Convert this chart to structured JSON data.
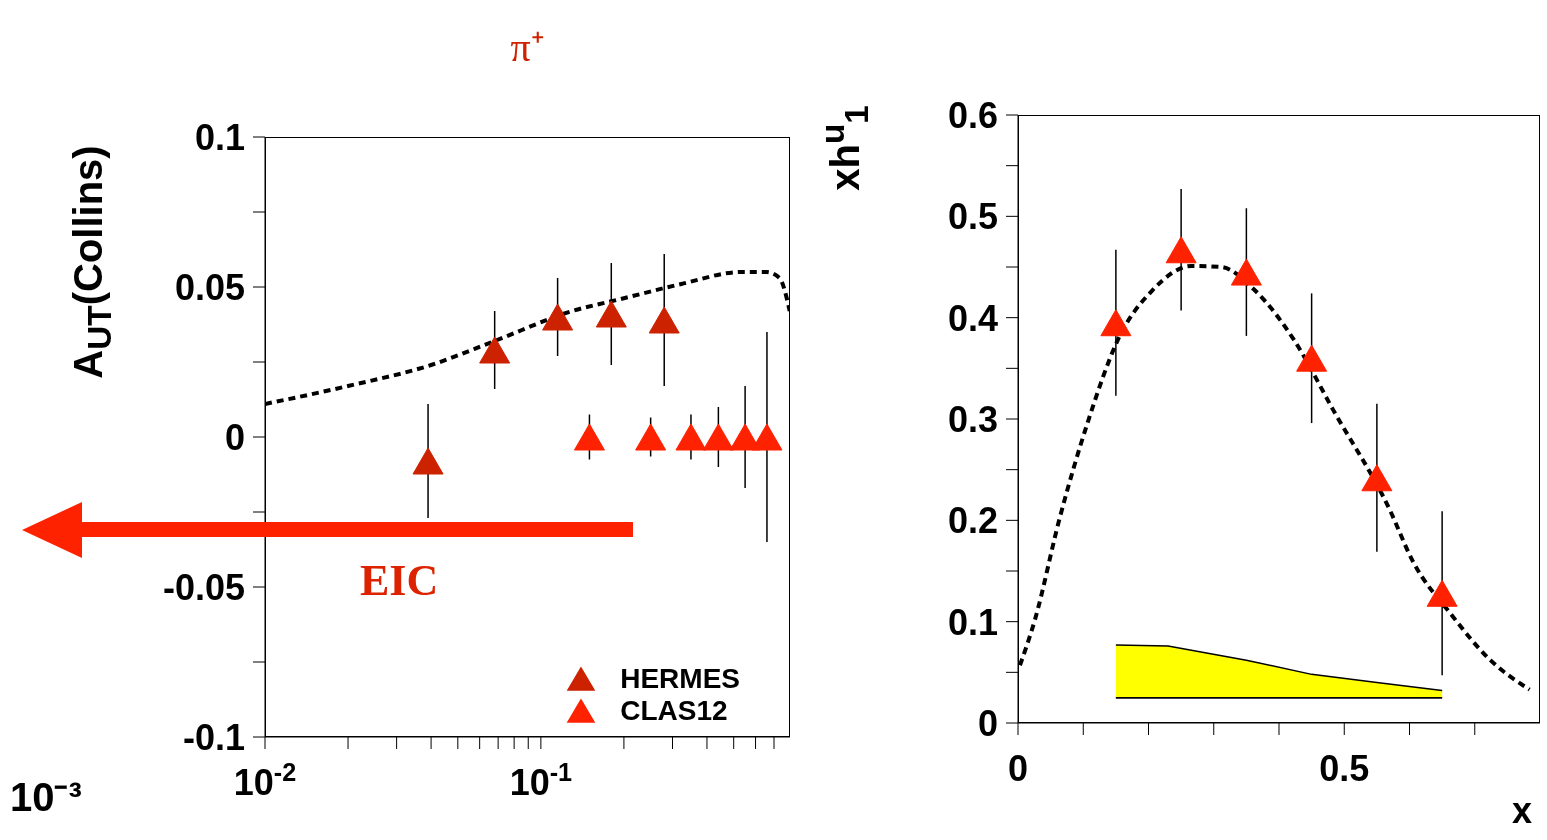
{
  "chart_data": [
    {
      "type": "line",
      "title": "π⁺",
      "ylabel": "A$_{UT}$(Collins)",
      "log": "x",
      "xlim": [
        0.01,
        0.8
      ],
      "xticks": [
        {
          "value": 0.01,
          "label": "10$^{-2}$"
        },
        {
          "value": 0.02,
          "label": null
        },
        {
          "value": 0.03,
          "label": null
        },
        {
          "value": 0.04,
          "label": null
        },
        {
          "value": 0.05,
          "label": null
        },
        {
          "value": 0.06,
          "label": null
        },
        {
          "value": 0.07,
          "label": null
        },
        {
          "value": 0.08,
          "label": null
        },
        {
          "value": 0.09,
          "label": null
        },
        {
          "value": 0.1,
          "label": "10$^{-1}$"
        },
        {
          "value": 0.2,
          "label": null
        },
        {
          "value": 0.3,
          "label": null
        },
        {
          "value": 0.4,
          "label": null
        },
        {
          "value": 0.5,
          "label": null
        },
        {
          "value": 0.6,
          "label": null
        },
        {
          "value": 0.7,
          "label": null
        }
      ],
      "ylim": [
        -0.1,
        0.1
      ],
      "yticks": [
        -0.1,
        {
          "value": -0.075,
          "label": null
        },
        -0.05,
        {
          "value": -0.025,
          "label": null
        },
        0,
        {
          "value": 0.025,
          "label": null
        },
        0.05,
        {
          "value": 0.075,
          "label": null
        },
        0.1
      ],
      "legend": "bottom right",
      "marker": "none",
      "line_style": "dashed",
      "series": [
        {
          "color": "#000000",
          "x": [
            0.01,
            0.02,
            0.04,
            0.068,
            0.13,
            0.195,
            0.323,
            0.533,
            0.658,
            0.733,
            0.798
          ],
          "values": [
            0.011,
            0.017,
            0.024,
            0.032,
            0.042,
            0.046,
            0.051,
            0.055,
            0.055,
            0.053,
            0.042
          ]
        },
        {
          "name": "HERMES",
          "type": "scatter",
          "marker": "triangle",
          "color": "#cc2200",
          "x": [
            0.039,
            0.068,
            0.115,
            0.18,
            0.28
          ],
          "values": [
            -0.008,
            0.029,
            0.04,
            0.041,
            0.039
          ],
          "errors": [
            0.019,
            0.013,
            0.013,
            0.017,
            0.022
          ]
        },
        {
          "name": "CLAS12",
          "type": "scatter",
          "marker": "triangle",
          "color": "#ff2200",
          "x": [
            0.15,
            0.25,
            0.35,
            0.44,
            0.55,
            0.66
          ],
          "values": [
            0,
            0,
            0,
            0,
            0,
            0
          ],
          "errors": [
            0.0075,
            0.0065,
            0.0075,
            0.01,
            0.017,
            0.035
          ]
        }
      ],
      "annotations": [
        "EIC",
        "10⁻³"
      ]
    },
    {
      "type": "line",
      "xlabel": "x",
      "ylabel": "xh$^{u}$$_{1}$",
      "xlim": [
        0,
        0.8
      ],
      "xticks": [
        0,
        {
          "value": 0.1,
          "label": null
        },
        {
          "value": 0.2,
          "label": null
        },
        {
          "value": 0.3,
          "label": null
        },
        {
          "value": 0.4,
          "label": null
        },
        0.5,
        {
          "value": 0.6,
          "label": null
        },
        {
          "value": 0.7,
          "label": null
        }
      ],
      "ylim": [
        0,
        0.6
      ],
      "yticks": [
        0,
        {
          "value": 0.05,
          "label": null
        },
        0.1,
        {
          "value": 0.15,
          "label": null
        },
        0.2,
        {
          "value": 0.25,
          "label": null
        },
        0.3,
        {
          "value": 0.35,
          "label": null
        },
        0.4,
        {
          "value": 0.45,
          "label": null
        },
        0.5,
        {
          "value": 0.55,
          "label": null
        },
        0.6
      ],
      "marker": "none",
      "line_style": "dashed",
      "stacked": true,
      "series": [
        {
          "type": "area",
          "color": "#ffffff",
          "x": [
            0.15,
            0.23,
            0.35,
            0.45,
            0.55,
            0.65
          ],
          "values": [
            0.025,
            0.025,
            0.025,
            0.025,
            0.025,
            0.025
          ]
        },
        {
          "type": "area",
          "color": "#ffff00",
          "x": [
            0.15,
            0.23,
            0.35,
            0.45,
            0.55,
            0.65
          ],
          "values": [
            0.052,
            0.051,
            0.037,
            0.023,
            0.015,
            0.007
          ]
        },
        {
          "color": "#000000",
          "x": [
            0.003,
            0.026,
            0.063,
            0.108,
            0.153,
            0.206,
            0.266,
            0.311,
            0.363,
            0.423,
            0.483,
            0.57,
            0.604,
            0.664,
            0.724,
            0.784
          ],
          "values": [
            0.057,
            0.102,
            0.2,
            0.299,
            0.378,
            0.427,
            0.451,
            0.45,
            0.427,
            0.378,
            0.309,
            0.21,
            0.161,
            0.107,
            0.062,
            0.033
          ]
        },
        {
          "type": "scatter",
          "marker": "triangle",
          "color": "#ff2200",
          "x": [
            0.15,
            0.25,
            0.35,
            0.45,
            0.55,
            0.65
          ],
          "values": [
            0.395,
            0.467,
            0.445,
            0.36,
            0.242,
            0.128
          ],
          "errors": [
            0.072,
            0.06,
            0.063,
            0.064,
            0.073,
            0.081
          ]
        }
      ]
    }
  ]
}
